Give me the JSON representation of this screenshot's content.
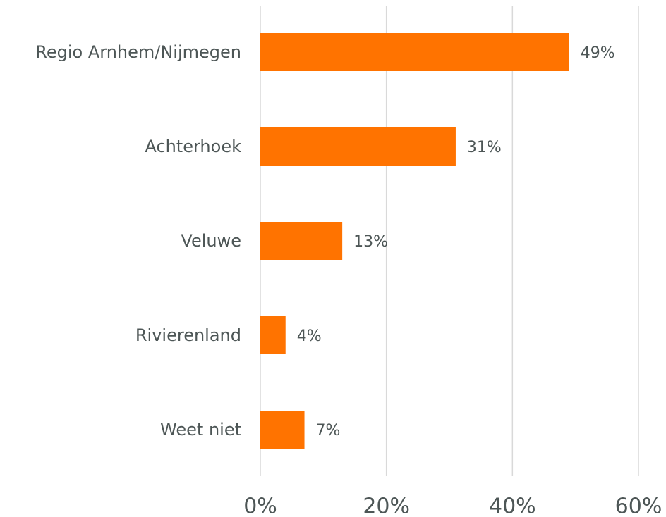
{
  "chart_data": {
    "type": "bar",
    "orientation": "horizontal",
    "categories": [
      "Regio Arnhem/Nijmegen",
      "Achterhoek",
      "Veluwe",
      "Rivierenland",
      "Weet niet"
    ],
    "values": [
      49,
      31,
      13,
      4,
      7
    ],
    "value_labels": [
      "49%",
      "31%",
      "13%",
      "4%",
      "7%"
    ],
    "color": "#ff7300",
    "xlim": [
      0,
      60
    ],
    "xticks": [
      {
        "value": 0,
        "label": "0%"
      },
      {
        "value": 20,
        "label": "20%"
      },
      {
        "value": 40,
        "label": "40%"
      },
      {
        "value": 60,
        "label": "60%"
      }
    ],
    "grid": true
  }
}
